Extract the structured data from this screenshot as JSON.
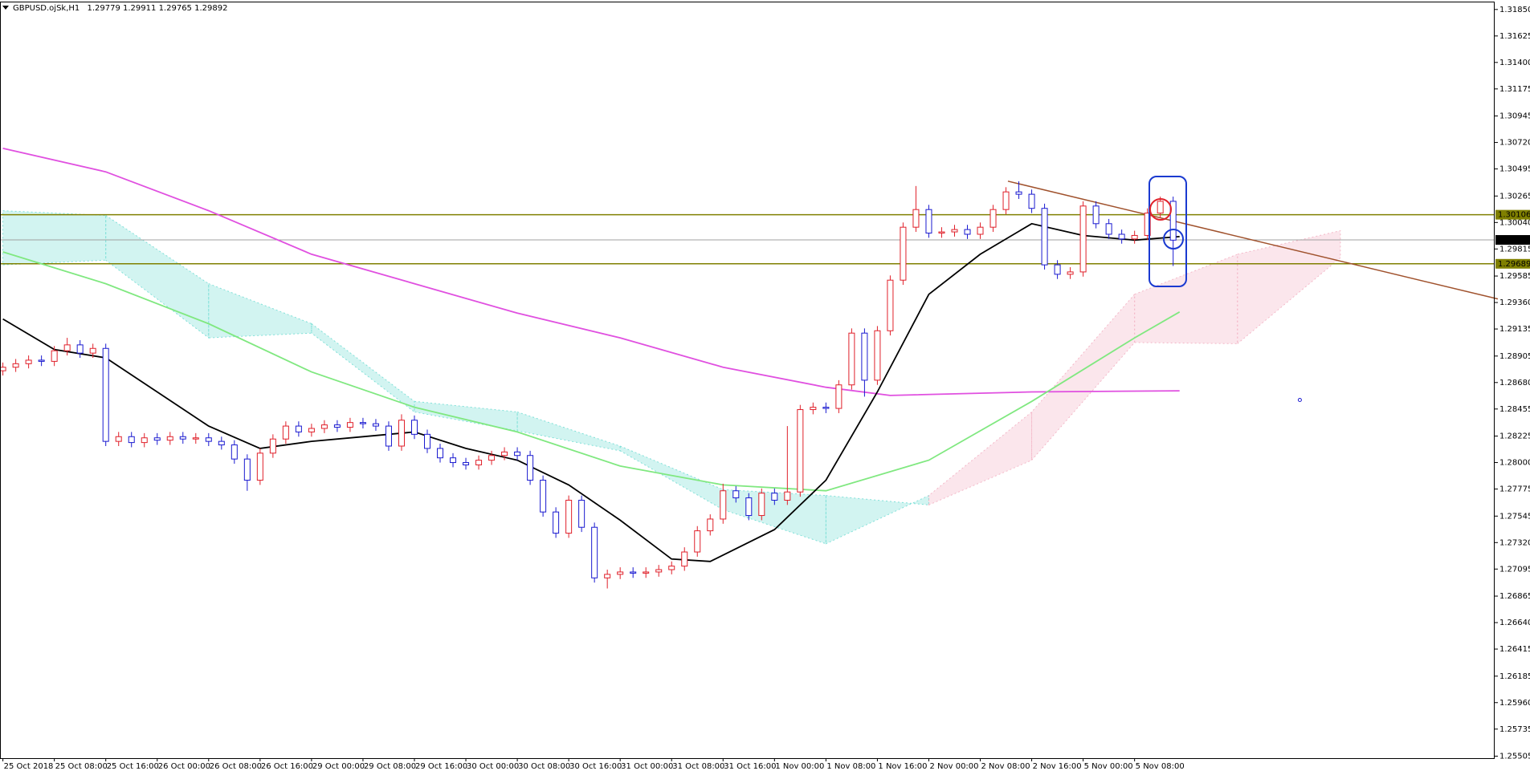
{
  "chart_data": {
    "type": "candlestick",
    "title": "GBPUSD.ojSk,H1",
    "header_values": [
      1.29779,
      1.29911,
      1.29765,
      1.29892
    ],
    "up_color": "#e0202a",
    "down_color": "#1a1ad0",
    "x": [
      0,
      2,
      4,
      6,
      8,
      10,
      12,
      14,
      16,
      18,
      20,
      22,
      24,
      26,
      28,
      30,
      32,
      34,
      36,
      38,
      40,
      42,
      44,
      46,
      48,
      50,
      52,
      54,
      56,
      58,
      60,
      62,
      64,
      66,
      68,
      70,
      72,
      74,
      76,
      78,
      80,
      82,
      84,
      86,
      88,
      90,
      92,
      94,
      96,
      98,
      100,
      102,
      104,
      106,
      108,
      110,
      112,
      114,
      116,
      118,
      120,
      122,
      124,
      126,
      128,
      130,
      132,
      134,
      136,
      138,
      140,
      142,
      144,
      146,
      148,
      150,
      152,
      154,
      156,
      158,
      160,
      162,
      164,
      166,
      168,
      170,
      172,
      174,
      176,
      178,
      180,
      182
    ],
    "open": [
      1.2878,
      1.2881,
      1.2884,
      1.2887,
      1.2886,
      1.2895,
      1.29,
      1.2893,
      1.2897,
      1.2818,
      1.2822,
      1.2817,
      1.2821,
      1.2819,
      1.2822,
      1.282,
      1.2821,
      1.2818,
      1.2815,
      1.2803,
      1.2785,
      1.2808,
      1.282,
      1.2831,
      1.2826,
      1.2829,
      1.2832,
      1.283,
      1.2834,
      1.2833,
      1.2831,
      1.2814,
      1.2836,
      1.2824,
      1.2812,
      1.2804,
      1.28,
      1.2798,
      1.2802,
      1.2806,
      1.2809,
      1.2806,
      1.2785,
      1.2758,
      1.274,
      1.2768,
      1.2745,
      1.2702,
      1.2705,
      1.2707,
      1.2706,
      1.2707,
      1.2709,
      1.2712,
      1.2724,
      1.2742,
      1.2752,
      1.2776,
      1.277,
      1.2755,
      1.2774,
      1.2768,
      1.2775,
      1.2845,
      1.2847,
      1.2846,
      1.2866,
      1.291,
      1.287,
      1.2912,
      1.2955,
      1.3,
      1.3015,
      1.2995,
      1.2996,
      1.2998,
      1.2994,
      1.3,
      1.3015,
      1.303,
      1.3028,
      1.3016,
      1.2968,
      1.296,
      1.2962,
      1.3018,
      1.3003,
      1.2994,
      1.299,
      1.2993,
      1.3012,
      1.3022
    ],
    "high": [
      1.2885,
      1.2888,
      1.2891,
      1.2891,
      1.2899,
      1.2906,
      1.2904,
      1.2901,
      1.2901,
      1.2826,
      1.2826,
      1.2825,
      1.2825,
      1.2826,
      1.2826,
      1.2825,
      1.2825,
      1.2822,
      1.2819,
      1.2807,
      1.2812,
      1.2824,
      1.2835,
      1.2835,
      1.2833,
      1.2836,
      1.2836,
      1.2838,
      1.2838,
      1.2837,
      1.2835,
      1.2841,
      1.284,
      1.2828,
      1.2816,
      1.2808,
      1.2804,
      1.2806,
      1.281,
      1.2813,
      1.2813,
      1.281,
      1.2789,
      1.2762,
      1.2772,
      1.2772,
      1.2749,
      1.2709,
      1.2711,
      1.2711,
      1.2711,
      1.2713,
      1.2716,
      1.2728,
      1.2746,
      1.2756,
      1.2782,
      1.278,
      1.2774,
      1.2778,
      1.2778,
      1.2831,
      1.2849,
      1.2851,
      1.2851,
      1.287,
      1.2914,
      1.2914,
      1.2916,
      1.2959,
      1.3004,
      1.3035,
      1.3019,
      1.3,
      1.3002,
      1.3002,
      1.3004,
      1.3019,
      1.3034,
      1.3039,
      1.3032,
      1.302,
      1.2972,
      1.2966,
      1.3022,
      1.3022,
      1.3007,
      1.2998,
      1.2997,
      1.3016,
      1.3026,
      1.3026
    ],
    "low": [
      1.2874,
      1.2877,
      1.288,
      1.2882,
      1.2882,
      1.2891,
      1.2889,
      1.2889,
      1.2814,
      1.2814,
      1.2813,
      1.2813,
      1.2815,
      1.2815,
      1.2816,
      1.2816,
      1.2814,
      1.2811,
      1.2799,
      1.2776,
      1.2781,
      1.2804,
      1.2816,
      1.2822,
      1.2822,
      1.2825,
      1.2826,
      1.2826,
      1.2829,
      1.2827,
      1.281,
      1.281,
      1.282,
      1.2808,
      1.28,
      1.2796,
      1.2794,
      1.2794,
      1.2798,
      1.2802,
      1.2802,
      1.2781,
      1.2754,
      1.2736,
      1.2736,
      1.2741,
      1.2698,
      1.2693,
      1.2701,
      1.2702,
      1.2702,
      1.2703,
      1.2705,
      1.2708,
      1.272,
      1.2738,
      1.2748,
      1.2766,
      1.2751,
      1.2751,
      1.2764,
      1.2764,
      1.2771,
      1.2841,
      1.2842,
      1.2842,
      1.2862,
      1.2856,
      1.2866,
      1.2908,
      1.2951,
      1.2996,
      1.2991,
      1.2991,
      1.2992,
      1.299,
      1.299,
      1.2996,
      1.3011,
      1.3024,
      1.3012,
      1.2964,
      1.2956,
      1.2956,
      1.2958,
      1.2999,
      1.299,
      1.2986,
      1.2986,
      1.2989,
      1.3008,
      1.2967
    ],
    "close": [
      1.2881,
      1.2884,
      1.2887,
      1.2886,
      1.2895,
      1.29,
      1.2893,
      1.2897,
      1.2818,
      1.2822,
      1.2817,
      1.2821,
      1.2819,
      1.2822,
      1.282,
      1.2821,
      1.2818,
      1.2815,
      1.2803,
      1.2785,
      1.2808,
      1.282,
      1.2831,
      1.2826,
      1.2829,
      1.2832,
      1.283,
      1.2834,
      1.2833,
      1.2831,
      1.2814,
      1.2836,
      1.2824,
      1.2812,
      1.2804,
      1.28,
      1.2798,
      1.2802,
      1.2806,
      1.2809,
      1.2806,
      1.2785,
      1.2758,
      1.274,
      1.2768,
      1.2745,
      1.2702,
      1.2705,
      1.2707,
      1.2706,
      1.2707,
      1.2709,
      1.2712,
      1.2724,
      1.2742,
      1.2752,
      1.2776,
      1.277,
      1.2755,
      1.2774,
      1.2768,
      1.2775,
      1.2845,
      1.2847,
      1.2846,
      1.2866,
      1.291,
      1.287,
      1.2912,
      1.2955,
      1.3,
      1.3015,
      1.2995,
      1.2996,
      1.2998,
      1.2994,
      1.3,
      1.3015,
      1.303,
      1.3028,
      1.3016,
      1.2968,
      1.296,
      1.2962,
      1.3018,
      1.3003,
      1.2994,
      1.299,
      1.2993,
      1.3012,
      1.3022,
      1.2989
    ],
    "xlim": [
      -0.45,
      232
    ],
    "xticks": [
      {
        "value": 0,
        "label": "25 Oct 2018"
      },
      {
        "value": 8,
        "label": "25 Oct 08:00"
      },
      {
        "value": 16,
        "label": "25 Oct 16:00"
      },
      {
        "value": 24,
        "label": "26 Oct 00:00"
      },
      {
        "value": 32,
        "label": "26 Oct 08:00"
      },
      {
        "value": 40,
        "label": "26 Oct 16:00"
      },
      {
        "value": 48,
        "label": "29 Oct 00:00"
      },
      {
        "value": 56,
        "label": "29 Oct 08:00"
      },
      {
        "value": 64,
        "label": "29 Oct 16:00"
      },
      {
        "value": 72,
        "label": "30 Oct 00:00"
      },
      {
        "value": 80,
        "label": "30 Oct 08:00"
      },
      {
        "value": 88,
        "label": "30 Oct 16:00"
      },
      {
        "value": 96,
        "label": "31 Oct 00:00"
      },
      {
        "value": 104,
        "label": "31 Oct 08:00"
      },
      {
        "value": 112,
        "label": "31 Oct 16:00"
      },
      {
        "value": 120,
        "label": "1 Nov 00:00"
      },
      {
        "value": 128,
        "label": "1 Nov 08:00"
      },
      {
        "value": 136,
        "label": "1 Nov 16:00"
      },
      {
        "value": 144,
        "label": "2 Nov 00:00"
      },
      {
        "value": 152,
        "label": "2 Nov 08:00"
      },
      {
        "value": 160,
        "label": "2 Nov 16:00"
      },
      {
        "value": 168,
        "label": "5 Nov 00:00"
      },
      {
        "value": 176,
        "label": "5 Nov 08:00"
      }
    ],
    "ylim": [
      1.25488,
      1.31917
    ],
    "yticks": [
      {
        "value": 1.3185,
        "label": "1.31850"
      },
      1.31625,
      {
        "value": 1.314,
        "label": "1.31400"
      },
      1.31175,
      1.30945,
      {
        "value": 1.3072,
        "label": "1.30720"
      },
      1.30495,
      1.30265,
      {
        "value": 1.3004,
        "label": "1.30040"
      },
      1.29815,
      1.29585,
      {
        "value": 1.2936,
        "label": "1.29360"
      },
      1.29135,
      1.28905,
      {
        "value": 1.2868,
        "label": "1.28680"
      },
      1.28455,
      1.28225,
      {
        "value": 1.28,
        "label": "1.28000"
      },
      1.27775,
      1.27545,
      {
        "value": 1.2732,
        "label": "1.27320"
      },
      1.27095,
      1.26865,
      {
        "value": 1.2664,
        "label": "1.26640"
      },
      1.26415,
      1.26185,
      {
        "value": 1.2596,
        "label": "1.25960"
      },
      1.25735,
      1.25505
    ],
    "cloud": {
      "up_color": "#7fe0d8",
      "down_color": "#f4b8c8",
      "x": [
        0,
        16,
        32,
        48,
        64,
        80,
        96,
        112,
        128,
        144,
        160,
        176,
        192,
        208
      ],
      "a": [
        1.3014,
        1.301,
        1.2952,
        1.2918,
        1.2852,
        1.2843,
        1.2814,
        1.2777,
        1.2772,
        1.2764,
        1.2802,
        1.2902,
        1.2901,
        1.2974
      ],
      "b": [
        1.2968,
        1.2972,
        1.2906,
        1.291,
        1.2843,
        1.2827,
        1.281,
        1.276,
        1.2731,
        1.2772,
        1.2843,
        1.2943,
        1.2977,
        1.2997
      ]
    },
    "lines": [
      {
        "color": "#e050e0",
        "x": [
          0,
          16,
          32,
          48,
          64,
          80,
          96,
          112,
          128,
          138,
          160,
          183
        ],
        "values": [
          1.3067,
          1.3047,
          1.3014,
          1.2977,
          1.2952,
          1.2927,
          1.2906,
          1.2881,
          1.2864,
          1.2857,
          1.286,
          1.2861
        ]
      },
      {
        "color": "#80e880",
        "x": [
          0,
          16,
          32,
          48,
          64,
          80,
          96,
          112,
          128,
          144,
          160,
          176,
          183
        ],
        "values": [
          1.2979,
          1.2952,
          1.2918,
          1.2877,
          1.2847,
          1.2826,
          1.2797,
          1.2781,
          1.2776,
          1.2802,
          1.2852,
          1.2906,
          1.2928
        ]
      },
      {
        "color": "#000000",
        "x": [
          0,
          8,
          16,
          24,
          32,
          40,
          48,
          56,
          64,
          72,
          80,
          88,
          96,
          104,
          110,
          120,
          128,
          136,
          144,
          152,
          160,
          168,
          176,
          183
        ],
        "values": [
          1.2922,
          1.2896,
          1.2889,
          1.286,
          1.2831,
          1.2812,
          1.2818,
          1.2822,
          1.2826,
          1.2812,
          1.2802,
          1.2781,
          1.2751,
          1.2718,
          1.2716,
          1.2743,
          1.2785,
          1.286,
          1.2943,
          1.2977,
          1.3003,
          1.2993,
          1.2989,
          1.2992
        ]
      }
    ],
    "levels": [
      {
        "value": 1.30106,
        "color": "#808000"
      },
      {
        "value": 1.29689,
        "color": "#808000"
      }
    ],
    "current_price": {
      "value": 1.29892,
      "color": "#a0a0a0"
    },
    "trendline": {
      "x": [
        156.3,
        232.5
      ],
      "y": [
        1.30391,
        1.2939
      ],
      "color": "#a0522d"
    },
    "marker": {
      "x": 201.7,
      "y": 1.28532,
      "color": "#1a1ad0"
    }
  }
}
